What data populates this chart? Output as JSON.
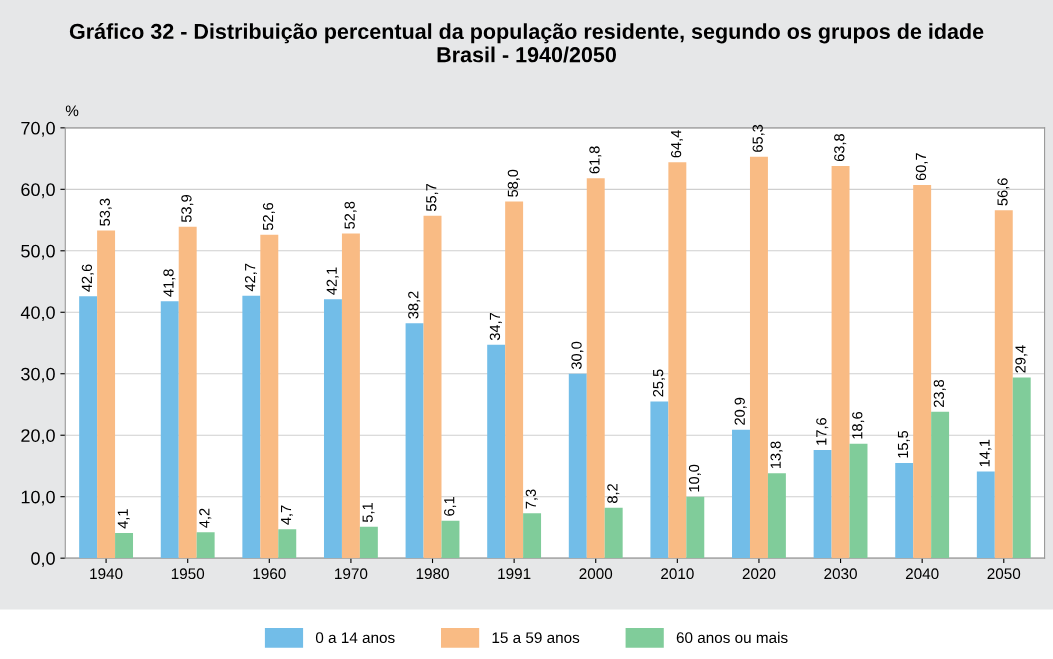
{
  "chart_data": {
    "type": "bar",
    "title": "Gráfico 32 - Distribuição percentual da população residente, segundo os grupos de idade\nBrasil - 1940/2050",
    "ylabel": "%",
    "categories": [
      "1940",
      "1950",
      "1960",
      "1970",
      "1980",
      "1991",
      "2000",
      "2010",
      "2020",
      "2030",
      "2040",
      "2050"
    ],
    "series": [
      {
        "name": "0 a 14 anos",
        "color": "#72bde8",
        "values": [
          42.6,
          41.8,
          42.7,
          42.1,
          38.2,
          34.7,
          30.0,
          25.5,
          20.9,
          17.6,
          15.5,
          14.1
        ],
        "value_labels": [
          "42,6",
          "41,8",
          "42,7",
          "42,1",
          "38,2",
          "34,7",
          "30,0",
          "25,5",
          "20,9",
          "17,6",
          "15,5",
          "14,1"
        ]
      },
      {
        "name": "15 a 59 anos",
        "color": "#f9bb84",
        "values": [
          53.3,
          53.9,
          52.6,
          52.8,
          55.7,
          58.0,
          61.8,
          64.4,
          65.3,
          63.8,
          60.7,
          56.6
        ],
        "value_labels": [
          "53,3",
          "53,9",
          "52,6",
          "52,8",
          "55,7",
          "58,0",
          "61,8",
          "64,4",
          "65,3",
          "63,8",
          "60,7",
          "56,6"
        ]
      },
      {
        "name": "60 anos ou mais",
        "color": "#80cc9a",
        "values": [
          4.1,
          4.2,
          4.7,
          5.1,
          6.1,
          7.3,
          8.2,
          10.0,
          13.8,
          18.6,
          23.8,
          29.4
        ],
        "value_labels": [
          "4,1",
          "4,2",
          "4,7",
          "5,1",
          "6,1",
          "7,3",
          "8,2",
          "10,0",
          "13,8",
          "18,6",
          "23,8",
          "29,4"
        ]
      }
    ],
    "ylim": [
      0,
      70
    ],
    "yticks": [
      {
        "value": 0,
        "label": "0,0"
      },
      {
        "value": 10,
        "label": "10,0"
      },
      {
        "value": 20,
        "label": "20,0"
      },
      {
        "value": 30,
        "label": "30,0"
      },
      {
        "value": 40,
        "label": "40,0"
      },
      {
        "value": 50,
        "label": "50,0"
      },
      {
        "value": 60,
        "label": "60,0"
      },
      {
        "value": 70,
        "label": "70,0"
      }
    ],
    "grid": "y",
    "legend": "bottom"
  }
}
